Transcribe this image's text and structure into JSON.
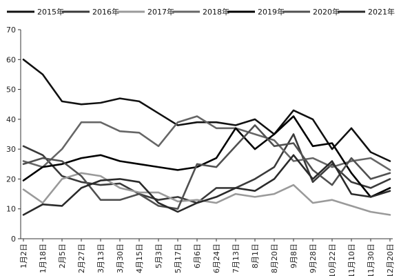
{
  "chart_data": {
    "type": "line",
    "x": [
      "1月2日",
      "1月18日",
      "2月5日",
      "2月27日",
      "3月13日",
      "3月30日",
      "4月15日",
      "5月3日",
      "5月17日",
      "6月6日",
      "6月24日",
      "7月13日",
      "8月1日",
      "8月20日",
      "9月8日",
      "9月28日",
      "10月22日",
      "11月10日",
      "11月30日",
      "12月20日"
    ],
    "ylim": [
      0,
      70
    ],
    "yticks": [
      0,
      10,
      20,
      30,
      40,
      50,
      60,
      70
    ],
    "grid": false,
    "legend_position": "top",
    "series": [
      {
        "name": "2015年",
        "color": "#111111",
        "values": [
          60,
          55,
          46,
          45,
          45.5,
          47,
          46,
          42,
          38,
          39,
          39,
          38,
          40,
          35,
          43,
          40,
          30,
          37,
          29,
          26
        ]
      },
      {
        "name": "2016年",
        "color": "#3a3a3a",
        "values": [
          31,
          28,
          21,
          19,
          18,
          18.5,
          15,
          13,
          14,
          12,
          17,
          17,
          20,
          24,
          35,
          19,
          25,
          19,
          17,
          20
        ]
      },
      {
        "name": "2017年",
        "color": "#9a9a9a",
        "values": [
          16.5,
          12,
          20,
          22,
          21,
          17,
          15.5,
          15.5,
          12.5,
          13,
          12,
          15,
          14,
          15,
          18,
          12,
          13,
          11,
          9,
          8
        ]
      },
      {
        "name": "2018年",
        "color": "#666666",
        "values": [
          26,
          24,
          30,
          39,
          39,
          36,
          35.5,
          31,
          39,
          41,
          37,
          37,
          35,
          33,
          26,
          27,
          24,
          26,
          27,
          23
        ]
      },
      {
        "name": "2019年",
        "color": "#000000",
        "values": [
          19.5,
          24,
          25,
          27,
          28,
          26,
          25,
          24,
          23,
          24,
          27,
          37,
          30,
          35,
          41,
          31,
          32,
          22,
          14,
          17
        ]
      },
      {
        "name": "2020年",
        "color": "#505050",
        "values": [
          25,
          27,
          26,
          21,
          13,
          13,
          15,
          11,
          10,
          25,
          24,
          31,
          38,
          31,
          32,
          23,
          18,
          27,
          20,
          22
        ]
      },
      {
        "name": "2021年",
        "color": "#2a2a2a",
        "values": [
          8,
          11.5,
          11,
          17,
          19.5,
          20,
          19,
          12,
          9,
          12,
          14,
          17,
          16,
          20,
          28,
          20,
          26,
          15,
          14,
          16
        ]
      }
    ]
  }
}
